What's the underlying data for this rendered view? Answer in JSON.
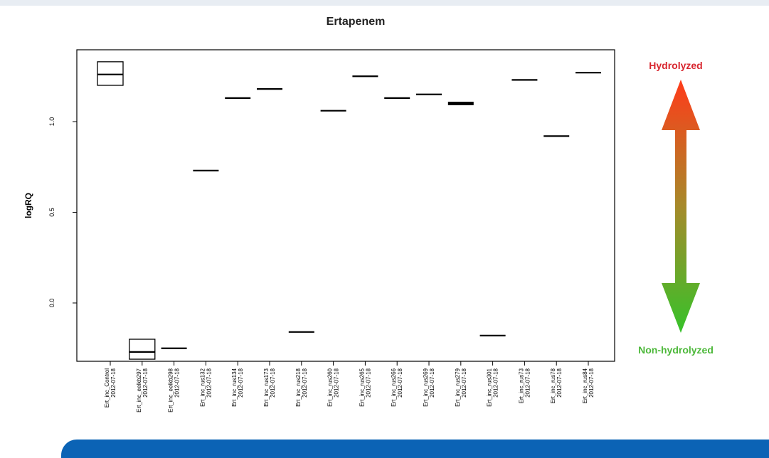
{
  "colors": {
    "hydrolyzed": "#d8262f",
    "non_hydrolyzed": "#4cb839",
    "arrow_top": "#ff3b1a",
    "arrow_bottom": "#36c22a",
    "footer_band": "#0b63b5"
  },
  "legend": {
    "hydrolyzed": "Hydrolyzed",
    "non_hydrolyzed": "Non-hydrolyzed",
    "arrow_icon": "double-headed-arrow-icon"
  },
  "chart_data": {
    "type": "boxplot",
    "title": "Ertapenem",
    "xlabel": "",
    "ylabel": "logRQ",
    "ylim": [
      -0.32,
      1.4
    ],
    "yticks": [
      0.0,
      0.5,
      1.0
    ],
    "ytick_labels": [
      "0.0",
      "0.5",
      "1.0"
    ],
    "grid": false,
    "categories": [
      {
        "name": "Ert_inc_Control",
        "date": "2012-07-18"
      },
      {
        "name": "Ert_inc_eelkb297",
        "date": "2012-07-18"
      },
      {
        "name": "Ert_inc_eelkb298",
        "date": "2012-07-18"
      },
      {
        "name": "Ert_inc_rus132",
        "date": "2012-07-18"
      },
      {
        "name": "Ert_inc_rus134",
        "date": "2012-07-18"
      },
      {
        "name": "Ert_inc_rus173",
        "date": "2012-07-18"
      },
      {
        "name": "Ert_inc_rus218",
        "date": "2012-07-18"
      },
      {
        "name": "Ert_inc_rus260",
        "date": "2012-07-18"
      },
      {
        "name": "Ert_inc_rus265",
        "date": "2012-07-18"
      },
      {
        "name": "Ert_inc_rus266",
        "date": "2012-07-18"
      },
      {
        "name": "Ert_inc_rus269",
        "date": "2012-07-18"
      },
      {
        "name": "Ert_inc_rus279",
        "date": "2012-07-18"
      },
      {
        "name": "Ert_inc_rus301",
        "date": "2012-07-18"
      },
      {
        "name": "Ert_inc_rus73",
        "date": "2012-07-18"
      },
      {
        "name": "Ert_inc_rus78",
        "date": "2012-07-18"
      },
      {
        "name": "Ert_inc_rus84",
        "date": "2012-07-18"
      }
    ],
    "boxes": [
      {
        "q1": 1.2,
        "median": 1.26,
        "q3": 1.33
      },
      {
        "q1": -0.31,
        "median": -0.27,
        "q3": -0.2
      },
      {
        "q1": -0.25,
        "median": -0.25,
        "q3": -0.25
      },
      {
        "q1": 0.73,
        "median": 0.73,
        "q3": 0.73
      },
      {
        "q1": 1.13,
        "median": 1.13,
        "q3": 1.13
      },
      {
        "q1": 1.18,
        "median": 1.18,
        "q3": 1.18
      },
      {
        "q1": -0.16,
        "median": -0.16,
        "q3": -0.16
      },
      {
        "q1": 1.06,
        "median": 1.06,
        "q3": 1.06
      },
      {
        "q1": 1.25,
        "median": 1.25,
        "q3": 1.25
      },
      {
        "q1": 1.13,
        "median": 1.13,
        "q3": 1.13
      },
      {
        "q1": 1.15,
        "median": 1.15,
        "q3": 1.15
      },
      {
        "q1": 1.1,
        "median": 1.1,
        "q3": 1.11
      },
      {
        "q1": -0.18,
        "median": -0.18,
        "q3": -0.18
      },
      {
        "q1": 1.23,
        "median": 1.23,
        "q3": 1.23
      },
      {
        "q1": 0.92,
        "median": 0.92,
        "q3": 0.92
      },
      {
        "q1": 1.27,
        "median": 1.27,
        "q3": 1.27
      }
    ]
  }
}
